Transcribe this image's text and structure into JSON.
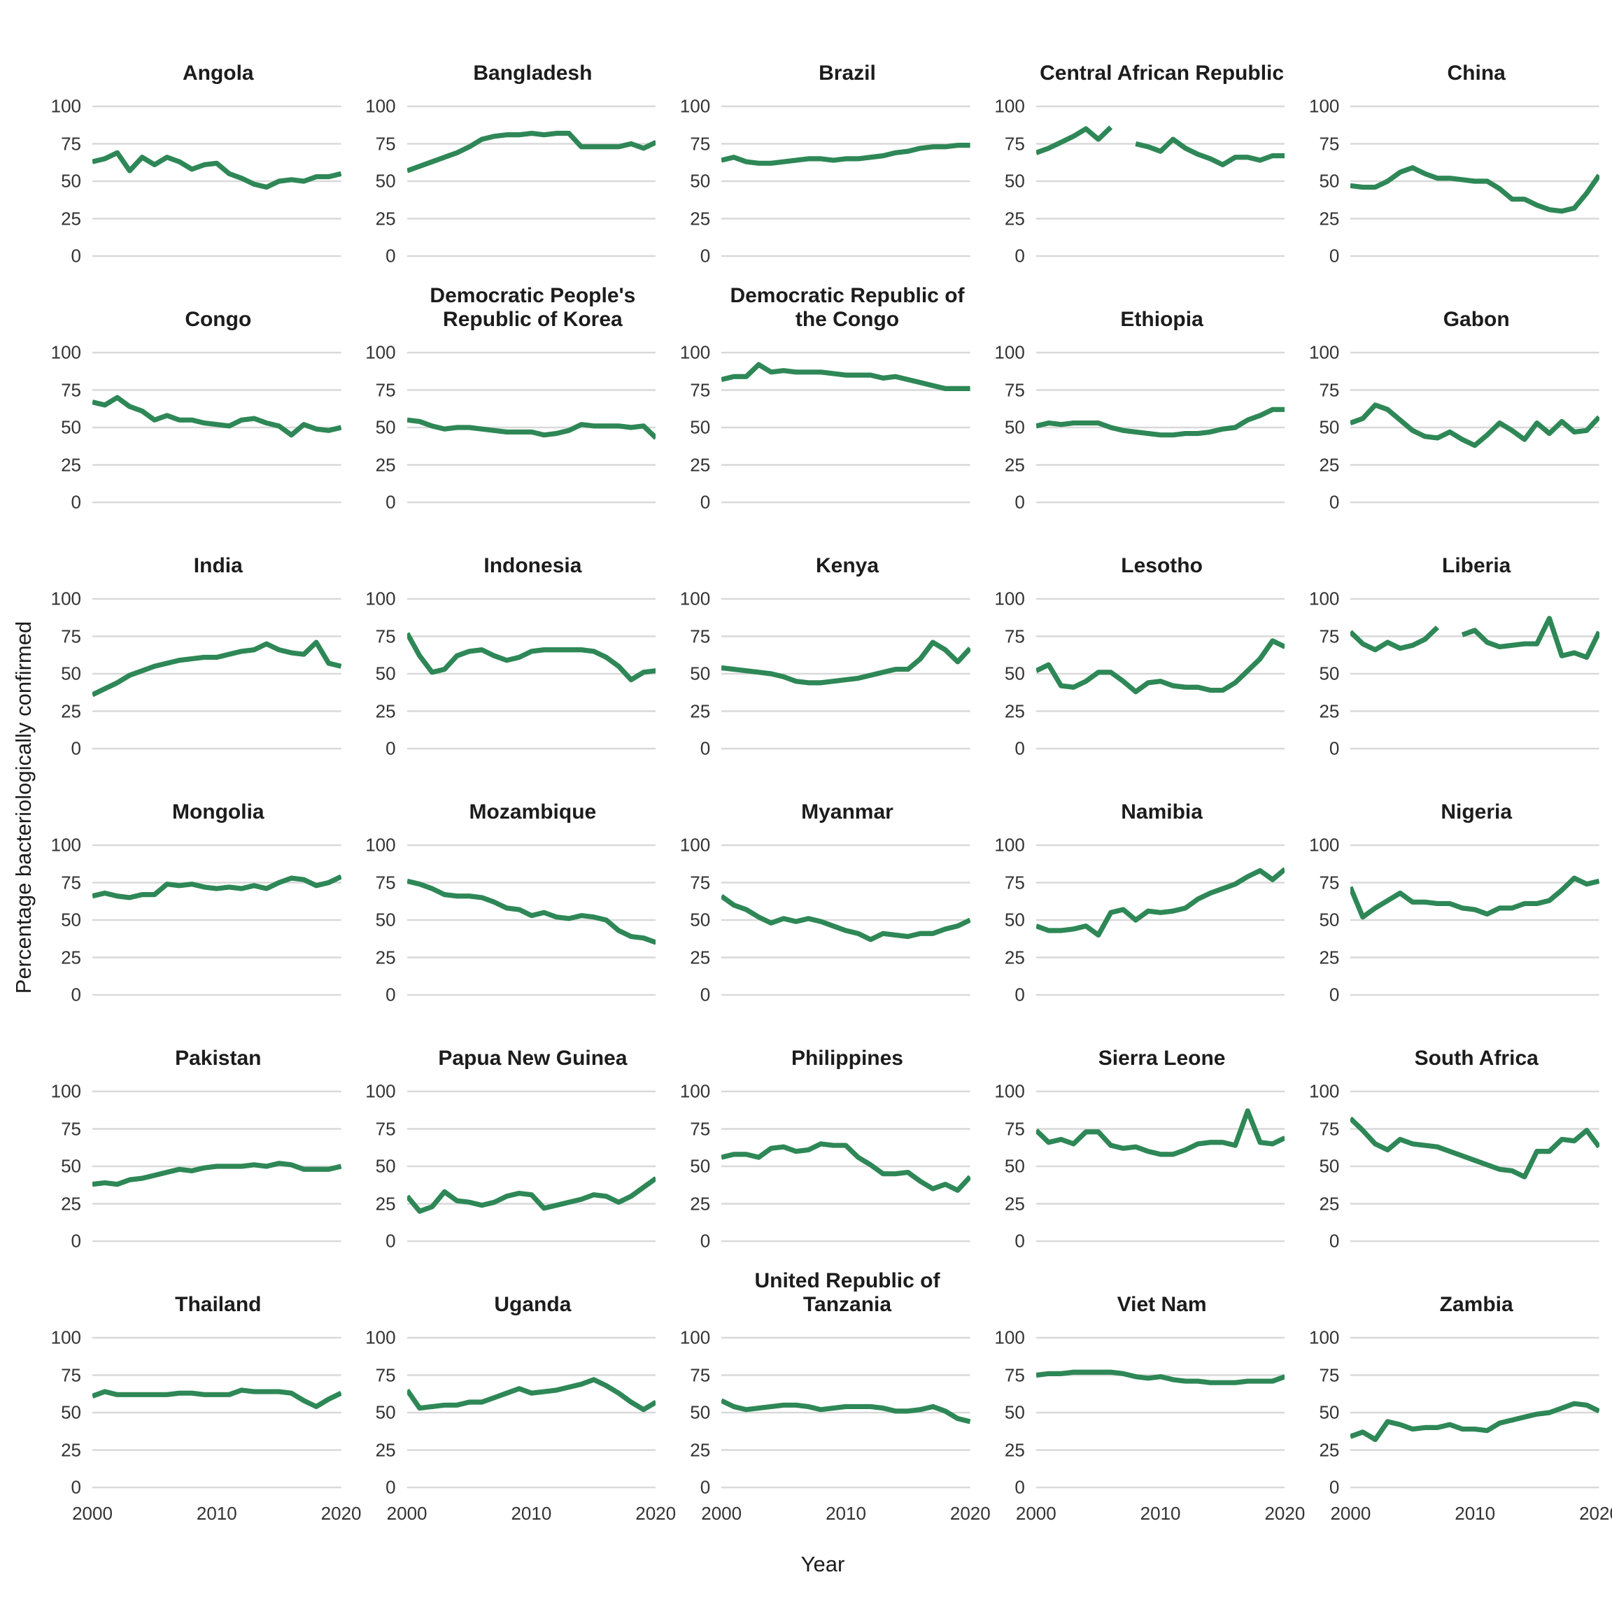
{
  "chart_data": {
    "type": "line",
    "title": "",
    "xlabel": "Year",
    "ylabel": "Percentage bacteriologically confirmed",
    "x_start": 2000,
    "x_end": 2020,
    "x_ticks": [
      2000,
      2010,
      2020
    ],
    "y_ticks": [
      0,
      25,
      50,
      75,
      100
    ],
    "ylim": [
      0,
      100
    ],
    "grid": "horizontal-only",
    "legend": "none",
    "line_color": "#2e8756",
    "grid_color": "#d9d9d9",
    "facets": [
      {
        "name": "Angola",
        "values": [
          63,
          65,
          69,
          57,
          66,
          61,
          66,
          63,
          58,
          61,
          62,
          55,
          52,
          48,
          46,
          50,
          51,
          50,
          53,
          53,
          55
        ]
      },
      {
        "name": "Bangladesh",
        "values": [
          57,
          60,
          63,
          66,
          69,
          73,
          78,
          80,
          81,
          81,
          82,
          81,
          82,
          82,
          73,
          73,
          73,
          73,
          75,
          72,
          76
        ]
      },
      {
        "name": "Brazil",
        "values": [
          64,
          66,
          63,
          62,
          62,
          63,
          64,
          65,
          65,
          64,
          65,
          65,
          66,
          67,
          69,
          70,
          72,
          73,
          73,
          74,
          74
        ]
      },
      {
        "name": "Central African Republic",
        "values": [
          69,
          72,
          76,
          80,
          85,
          78,
          86,
          null,
          75,
          73,
          70,
          78,
          72,
          68,
          65,
          61,
          66,
          66,
          64,
          67,
          67
        ]
      },
      {
        "name": "China",
        "values": [
          47,
          46,
          46,
          50,
          56,
          59,
          55,
          52,
          52,
          51,
          50,
          50,
          45,
          38,
          38,
          34,
          31,
          30,
          32,
          42,
          54
        ]
      },
      {
        "name": "Congo",
        "values": [
          67,
          65,
          70,
          64,
          61,
          55,
          58,
          55,
          55,
          53,
          52,
          51,
          55,
          56,
          53,
          51,
          45,
          52,
          49,
          48,
          50
        ]
      },
      {
        "name": "Democratic People's Republic of Korea",
        "values": [
          55,
          54,
          51,
          49,
          50,
          50,
          49,
          48,
          47,
          47,
          47,
          45,
          46,
          48,
          52,
          51,
          51,
          51,
          50,
          51,
          43
        ]
      },
      {
        "name": "Democratic Republic of the Congo",
        "values": [
          82,
          84,
          84,
          92,
          87,
          88,
          87,
          87,
          87,
          86,
          85,
          85,
          85,
          83,
          84,
          82,
          80,
          78,
          76,
          76,
          76
        ]
      },
      {
        "name": "Ethiopia",
        "values": [
          51,
          53,
          52,
          53,
          53,
          53,
          50,
          48,
          47,
          46,
          45,
          45,
          46,
          46,
          47,
          49,
          50,
          55,
          58,
          62,
          62
        ]
      },
      {
        "name": "Gabon",
        "values": [
          53,
          56,
          65,
          62,
          55,
          48,
          44,
          43,
          47,
          42,
          38,
          45,
          53,
          48,
          42,
          53,
          46,
          54,
          47,
          48,
          57
        ]
      },
      {
        "name": "India",
        "values": [
          36,
          40,
          44,
          49,
          52,
          55,
          57,
          59,
          60,
          61,
          61,
          63,
          65,
          66,
          70,
          66,
          64,
          63,
          71,
          57,
          55
        ]
      },
      {
        "name": "Indonesia",
        "values": [
          77,
          62,
          51,
          53,
          62,
          65,
          66,
          62,
          59,
          61,
          65,
          66,
          66,
          66,
          66,
          65,
          61,
          55,
          46,
          51,
          52
        ]
      },
      {
        "name": "Kenya",
        "values": [
          54,
          53,
          52,
          51,
          50,
          48,
          45,
          44,
          44,
          45,
          46,
          47,
          49,
          51,
          53,
          53,
          60,
          71,
          66,
          58,
          67
        ]
      },
      {
        "name": "Lesotho",
        "values": [
          52,
          56,
          42,
          41,
          45,
          51,
          51,
          45,
          38,
          44,
          45,
          42,
          41,
          41,
          39,
          39,
          44,
          52,
          60,
          72,
          68
        ]
      },
      {
        "name": "Liberia",
        "values": [
          78,
          70,
          66,
          71,
          67,
          69,
          73,
          81,
          null,
          76,
          79,
          71,
          68,
          69,
          70,
          70,
          87,
          62,
          64,
          61,
          78
        ]
      },
      {
        "name": "Mongolia",
        "values": [
          66,
          68,
          66,
          65,
          67,
          67,
          74,
          73,
          74,
          72,
          71,
          72,
          71,
          73,
          71,
          75,
          78,
          77,
          73,
          75,
          79
        ]
      },
      {
        "name": "Mozambique",
        "values": [
          76,
          74,
          71,
          67,
          66,
          66,
          65,
          62,
          58,
          57,
          53,
          55,
          52,
          51,
          53,
          52,
          50,
          43,
          39,
          38,
          35
        ]
      },
      {
        "name": "Myanmar",
        "values": [
          66,
          60,
          57,
          52,
          48,
          51,
          49,
          51,
          49,
          46,
          43,
          41,
          37,
          41,
          40,
          39,
          41,
          41,
          44,
          46,
          50
        ]
      },
      {
        "name": "Namibia",
        "values": [
          46,
          43,
          43,
          44,
          46,
          40,
          55,
          57,
          50,
          56,
          55,
          56,
          58,
          64,
          68,
          71,
          74,
          79,
          83,
          77,
          84
        ]
      },
      {
        "name": "Nigeria",
        "values": [
          72,
          52,
          58,
          63,
          68,
          62,
          62,
          61,
          61,
          58,
          57,
          54,
          58,
          58,
          61,
          61,
          63,
          70,
          78,
          74,
          76
        ]
      },
      {
        "name": "Pakistan",
        "values": [
          38,
          39,
          38,
          41,
          42,
          44,
          46,
          48,
          47,
          49,
          50,
          50,
          50,
          51,
          50,
          52,
          51,
          48,
          48,
          48,
          50
        ]
      },
      {
        "name": "Papua New Guinea",
        "values": [
          30,
          20,
          23,
          33,
          27,
          26,
          24,
          26,
          30,
          32,
          31,
          22,
          24,
          26,
          28,
          31,
          30,
          26,
          30,
          36,
          42
        ]
      },
      {
        "name": "Philippines",
        "values": [
          56,
          58,
          58,
          56,
          62,
          63,
          60,
          61,
          65,
          64,
          64,
          56,
          51,
          45,
          45,
          46,
          40,
          35,
          38,
          34,
          43
        ]
      },
      {
        "name": "Sierra Leone",
        "values": [
          74,
          66,
          68,
          65,
          73,
          73,
          64,
          62,
          63,
          60,
          58,
          58,
          61,
          65,
          66,
          66,
          64,
          87,
          66,
          65,
          69
        ]
      },
      {
        "name": "South Africa",
        "values": [
          82,
          74,
          65,
          61,
          68,
          65,
          64,
          63,
          60,
          57,
          54,
          51,
          48,
          47,
          43,
          60,
          60,
          68,
          67,
          74,
          63
        ]
      },
      {
        "name": "Thailand",
        "values": [
          61,
          64,
          62,
          62,
          62,
          62,
          62,
          63,
          63,
          62,
          62,
          62,
          65,
          64,
          64,
          64,
          63,
          58,
          54,
          59,
          63
        ]
      },
      {
        "name": "Uganda",
        "values": [
          65,
          53,
          54,
          55,
          55,
          57,
          57,
          60,
          63,
          66,
          63,
          64,
          65,
          67,
          69,
          72,
          68,
          63,
          57,
          52,
          57
        ]
      },
      {
        "name": "United Republic of Tanzania",
        "values": [
          58,
          54,
          52,
          53,
          54,
          55,
          55,
          54,
          52,
          53,
          54,
          54,
          54,
          53,
          51,
          51,
          52,
          54,
          51,
          46,
          44
        ]
      },
      {
        "name": "Viet Nam",
        "values": [
          75,
          76,
          76,
          77,
          77,
          77,
          77,
          76,
          74,
          73,
          74,
          72,
          71,
          71,
          70,
          70,
          70,
          71,
          71,
          71,
          74
        ]
      },
      {
        "name": "Zambia",
        "values": [
          34,
          37,
          32,
          44,
          42,
          39,
          40,
          40,
          42,
          39,
          39,
          38,
          43,
          45,
          47,
          49,
          50,
          53,
          56,
          55,
          51
        ]
      }
    ]
  }
}
